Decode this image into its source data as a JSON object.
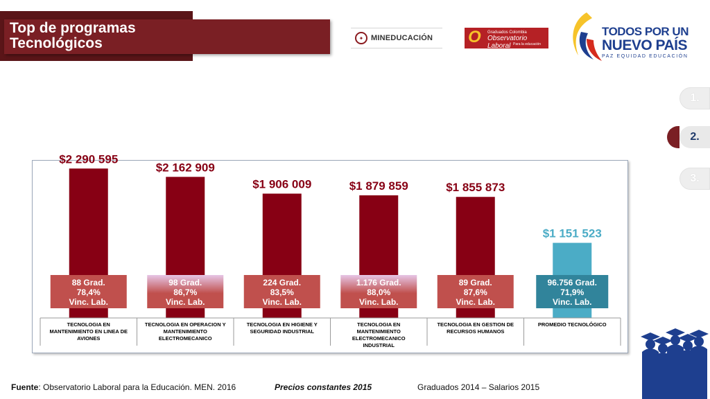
{
  "header": {
    "title_line1": "Top de programas",
    "title_line2": "Tecnológicos"
  },
  "logos": {
    "men": "MINEDUCACIÓN",
    "obs_line1": "Graduados Colombia",
    "obs_line2": "Observatorio Laboral",
    "obs_line3": "Para la educación",
    "tpu_line1": "TODOS POR UN",
    "tpu_line2": "NUEVO PAÍS",
    "tpu_line3": "PAZ  EQUIDAD  EDUCACIÓN"
  },
  "nav": [
    {
      "label": "1.",
      "active": false
    },
    {
      "label": "2.",
      "active": true
    },
    {
      "label": "3.",
      "active": false
    }
  ],
  "colors": {
    "bar": "#870014",
    "bar_avg": "#4bacc6",
    "value_label": "#870014",
    "value_label_avg": "#4bacc6",
    "stat_red": "#c0504d",
    "stat_teal": "#31849b",
    "banner": "#7a1f24",
    "nav_accent": "#7a1f24"
  },
  "chart_data": {
    "type": "bar",
    "ylim": [
      0,
      2400000
    ],
    "categories": [
      [
        "TECNOLOGIA EN",
        "MANTENIMIENTO EN LINEA DE",
        "AVIONES"
      ],
      [
        "TECNOLOGIA EN OPERACION Y",
        "MANTENIMIENTO",
        "ELECTROMECANICO"
      ],
      [
        "TECNOLOGIA EN HIGIENE Y",
        "SEGURIDAD INDUSTRIAL"
      ],
      [
        "TECNOLOGIA EN",
        "MANTENIMIENTO",
        "ELECTROMECANICO",
        "INDUSTRIAL"
      ],
      [
        "TECNOLOGIA EN GESTION DE",
        "RECURSOS HUMANOS"
      ],
      [
        "PROMEDIO TECNOLÓGICO"
      ]
    ],
    "values": [
      2290595,
      2162909,
      1906009,
      1879859,
      1855873,
      1151523
    ],
    "value_labels": [
      "$2 290 595",
      "$2 162 909",
      "$1 906 009",
      "$1 879 859",
      "$1 855 873",
      "$1 151 523"
    ],
    "stats": [
      {
        "grad": "88 Grad.",
        "pct": "78,4%",
        "vinc": "Vinc. Lab.",
        "style": "red"
      },
      {
        "grad": "98 Grad.",
        "pct": "86,7%",
        "vinc": "Vinc. Lab.",
        "style": "pink"
      },
      {
        "grad": "224 Grad.",
        "pct": "83,5%",
        "vinc": "Vinc. Lab.",
        "style": "red"
      },
      {
        "grad": "1.176 Grad.",
        "pct": "88,0%",
        "vinc": "Vinc. Lab.",
        "style": "pink"
      },
      {
        "grad": "89  Grad.",
        "pct": "87,6%",
        "vinc": "Vinc. Lab.",
        "style": "red"
      },
      {
        "grad": "96.756 Grad.",
        "pct": "71,9%",
        "vinc": "Vinc. Lab.",
        "style": "teal"
      }
    ],
    "highlight_index": 5,
    "grid": false,
    "legend": "none"
  },
  "footer": {
    "fuente_label": "Fuente",
    "fuente_text": ": Observatorio Laboral para la Educación. MEN. 2016",
    "precios": "Precios constantes  2015",
    "graduados": "Graduados 2014 – Salarios 2015"
  }
}
